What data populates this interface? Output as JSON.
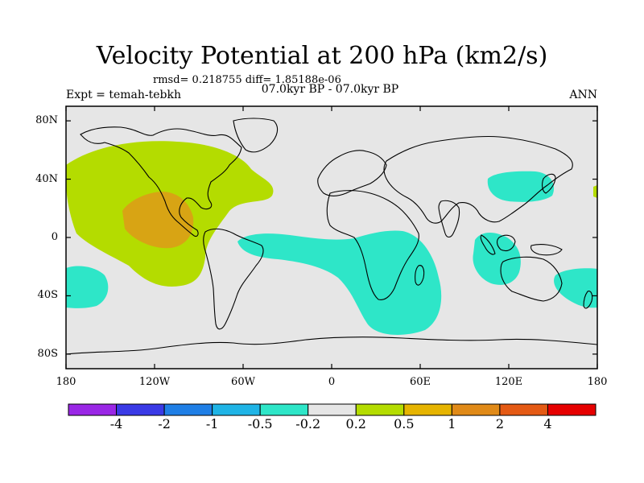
{
  "title": "Velocity Potential at 200 hPa (km2/s)",
  "stats": "rmsd= 0.218755 diff= 1.85188e-06",
  "experiment": "Expt = temah-tebkh",
  "period": "07.0kyr BP - 07.0kyr BP",
  "season": "ANN",
  "map": {
    "projection": "cylindrical equidistant",
    "lon_range": [
      -180,
      180
    ],
    "lat_range": [
      -90,
      90
    ],
    "lat_ticks": [
      {
        "value": 80,
        "label": "80N"
      },
      {
        "value": 40,
        "label": "40N"
      },
      {
        "value": 0,
        "label": "0"
      },
      {
        "value": -40,
        "label": "40S"
      },
      {
        "value": -80,
        "label": "80S"
      }
    ],
    "lon_ticks": [
      {
        "value": -180,
        "label": "180"
      },
      {
        "value": -120,
        "label": "120W"
      },
      {
        "value": -60,
        "label": "60W"
      },
      {
        "value": 0,
        "label": "0"
      },
      {
        "value": 60,
        "label": "60E"
      },
      {
        "value": 120,
        "label": "120E"
      },
      {
        "value": 180,
        "label": "180"
      }
    ],
    "background_color": "#e6e6e6"
  },
  "colorbar": {
    "colors": [
      "#9a27e6",
      "#3a3ae6",
      "#1f7fe6",
      "#1fb4e6",
      "#2ee6c8",
      "#e6e6e6",
      "#b4dc00",
      "#e6b400",
      "#e08a18",
      "#e45a14",
      "#e60000"
    ],
    "labels": [
      "-4",
      "-2",
      "-1",
      "-0.5",
      "-0.2",
      "0.2",
      "0.5",
      "1",
      "2",
      "4"
    ]
  },
  "colors": {
    "positive_light": "#b4dc00",
    "positive_strong": "#d8a414",
    "negative_light": "#2ee6c8"
  }
}
